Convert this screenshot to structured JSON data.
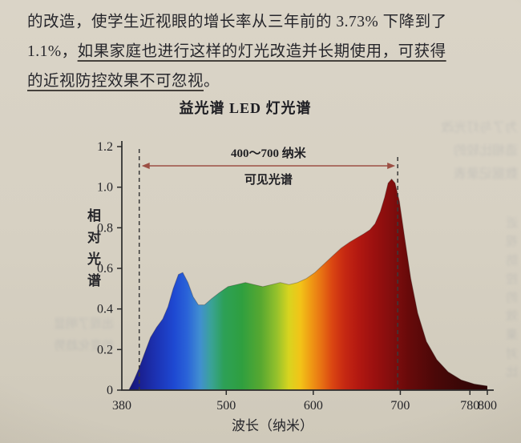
{
  "page": {
    "paragraph": {
      "line1": "的改造，使学生近视眼的增长率从三年前的 3.73% 下降到了",
      "line2_prefix": "1.1%，",
      "line2_underlined": "如果家庭也进行这样的灯光改造并长期使用，可获得",
      "line3_underlined": "的近视防控效果不可忽视",
      "line3_suffix": "。"
    },
    "bleedthrough": {
      "block1": "为了与灯光改\n造相比较的\n数据记录表",
      "block2": "近视防控的效果对比",
      "block3": "出现了明显\n的变化趋势"
    }
  },
  "chart_data": {
    "type": "area",
    "title": "益光谱 LED 灯光谱",
    "xlabel": "波长（纳米）",
    "ylabel": "相对光谱",
    "xlim": [
      380,
      800
    ],
    "ylim": [
      0,
      1.2
    ],
    "x_ticks": [
      {
        "v": 380,
        "label": "380"
      },
      {
        "v": 500,
        "label": "500"
      },
      {
        "v": 600,
        "label": "600"
      },
      {
        "v": 700,
        "label": "700"
      },
      {
        "v": 780,
        "label": "780"
      },
      {
        "v": 800,
        "label": "800"
      }
    ],
    "y_ticks": [
      {
        "v": 0,
        "label": "0"
      },
      {
        "v": 0.2,
        "label": "0.2"
      },
      {
        "v": 0.4,
        "label": "0.4"
      },
      {
        "v": 0.6,
        "label": "0.6"
      },
      {
        "v": 0.8,
        "label": "0.8"
      },
      {
        "v": 1.0,
        "label": "1.0"
      },
      {
        "v": 1.2,
        "label": "1.2"
      }
    ],
    "annotation": {
      "label_top": "400～700 纳米",
      "label_bottom": "可见光谱",
      "dashed_lines_nm": [
        400,
        697
      ],
      "arrow_color": "#9c4f44"
    },
    "series": [
      {
        "name": "相对光谱",
        "x": [
          388,
          394,
          400,
          406,
          413,
          420,
          427,
          433,
          439,
          445,
          450,
          456,
          462,
          468,
          475,
          483,
          492,
          502,
          512,
          522,
          532,
          542,
          552,
          562,
          572,
          582,
          592,
          602,
          612,
          622,
          632,
          642,
          650,
          658,
          665,
          671,
          677,
          682,
          686,
          690,
          694,
          699,
          705,
          712,
          720,
          730,
          742,
          755,
          770,
          785,
          800
        ],
        "y": [
          0,
          0.05,
          0.11,
          0.18,
          0.26,
          0.31,
          0.35,
          0.41,
          0.5,
          0.57,
          0.58,
          0.53,
          0.46,
          0.42,
          0.42,
          0.45,
          0.48,
          0.51,
          0.52,
          0.53,
          0.52,
          0.51,
          0.52,
          0.53,
          0.52,
          0.53,
          0.55,
          0.58,
          0.62,
          0.66,
          0.7,
          0.73,
          0.75,
          0.77,
          0.79,
          0.82,
          0.88,
          0.95,
          1.02,
          1.04,
          1.02,
          0.93,
          0.75,
          0.55,
          0.38,
          0.24,
          0.15,
          0.09,
          0.05,
          0.03,
          0.02
        ]
      }
    ],
    "gradient_stops": [
      {
        "nm": 380,
        "color": "#141060"
      },
      {
        "nm": 400,
        "color": "#1a1f8f"
      },
      {
        "nm": 420,
        "color": "#1c33b4"
      },
      {
        "nm": 440,
        "color": "#1e49d2"
      },
      {
        "nm": 455,
        "color": "#2a63d8"
      },
      {
        "nm": 470,
        "color": "#418fd0"
      },
      {
        "nm": 483,
        "color": "#3aa395"
      },
      {
        "nm": 497,
        "color": "#2da057"
      },
      {
        "nm": 518,
        "color": "#2f9f3f"
      },
      {
        "nm": 540,
        "color": "#58a830"
      },
      {
        "nm": 558,
        "color": "#95c12c"
      },
      {
        "nm": 572,
        "color": "#d8d41f"
      },
      {
        "nm": 585,
        "color": "#f2c418"
      },
      {
        "nm": 598,
        "color": "#ef9714"
      },
      {
        "nm": 610,
        "color": "#e76f13"
      },
      {
        "nm": 622,
        "color": "#da4512"
      },
      {
        "nm": 636,
        "color": "#c62812"
      },
      {
        "nm": 652,
        "color": "#b21811"
      },
      {
        "nm": 670,
        "color": "#9b100f"
      },
      {
        "nm": 690,
        "color": "#820d0d"
      },
      {
        "nm": 710,
        "color": "#670a0a"
      },
      {
        "nm": 740,
        "color": "#4b0808"
      },
      {
        "nm": 770,
        "color": "#3a0707"
      },
      {
        "nm": 800,
        "color": "#2e0606"
      }
    ]
  }
}
